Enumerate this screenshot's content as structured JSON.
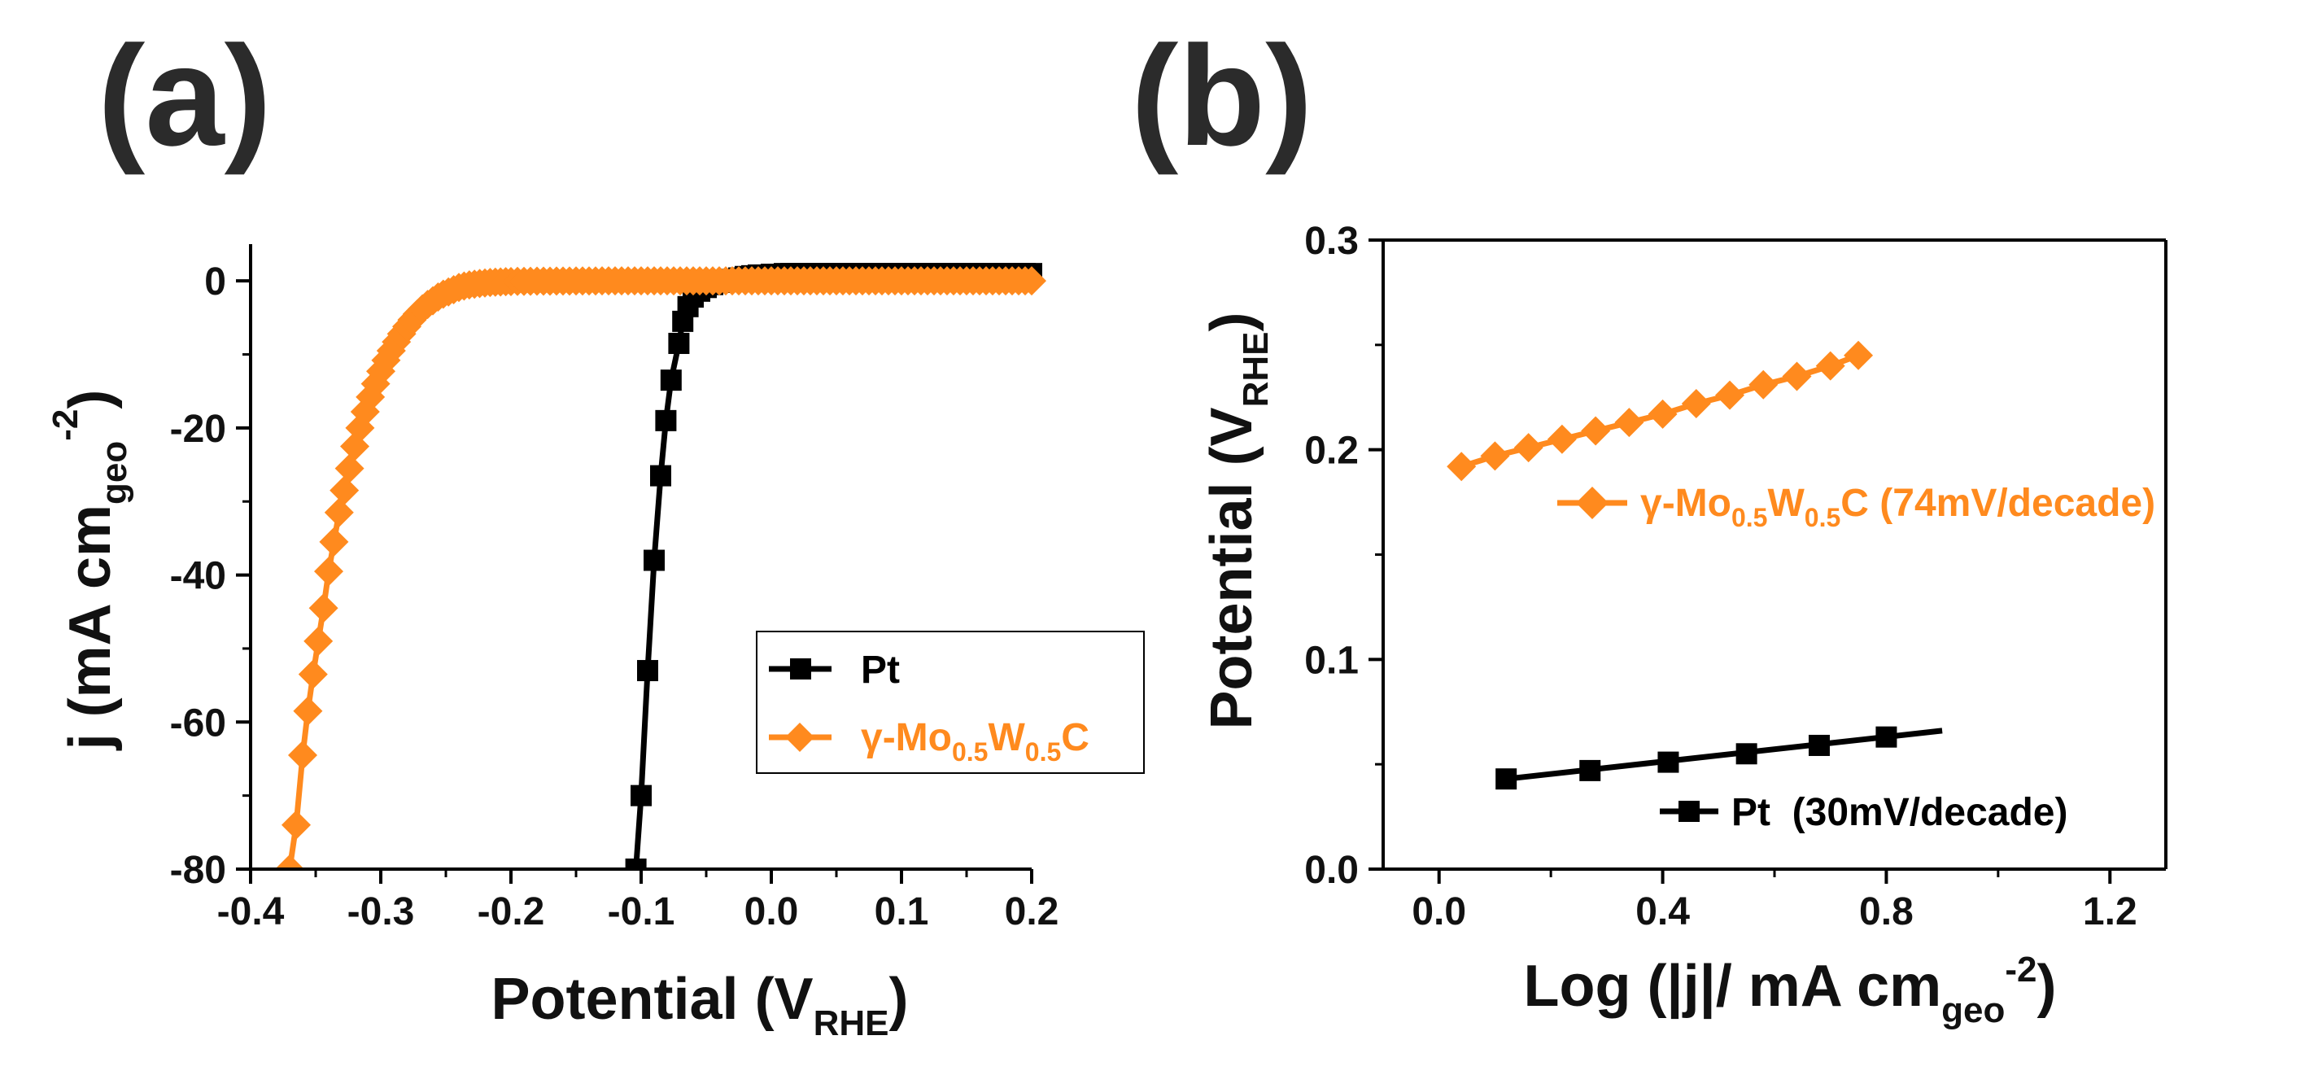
{
  "colors": {
    "pt": "#000000",
    "mowc": "#ff8a1e"
  },
  "chart_data": [
    {
      "type": "line",
      "panel_label": "(a)",
      "xlabel": "Potential (VRHE)",
      "xlabel_parts": {
        "main": "Potential (V",
        "sub": "RHE",
        "end": ")"
      },
      "ylabel": "j (mA cmgeo-2)",
      "ylabel_parts": {
        "main": "j (mA cm",
        "sub": "geo",
        "sup": "-2",
        "end": ")"
      },
      "xlim": [
        -0.4,
        0.2
      ],
      "ylim": [
        -80,
        5
      ],
      "xticks": [
        -0.4,
        -0.3,
        -0.2,
        -0.1,
        0.0,
        0.1,
        0.2
      ],
      "xtick_labels": [
        "-0.4",
        "-0.3",
        "-0.2",
        "-0.1",
        "0.0",
        "0.1",
        "0.2"
      ],
      "yticks": [
        0,
        -20,
        -40,
        -60,
        -80
      ],
      "ytick_labels": [
        "0",
        "-20",
        "-40",
        "-60",
        "-80"
      ],
      "legend_location": "lower-right",
      "series": [
        {
          "name": "Pt",
          "color_key": "pt",
          "marker": "square",
          "legend_parts": {
            "text": "Pt"
          },
          "x": [
            -0.104,
            -0.1,
            -0.095,
            -0.09,
            -0.085,
            -0.081,
            -0.077,
            -0.071,
            -0.068,
            -0.064,
            -0.06,
            -0.055,
            -0.05,
            -0.045,
            -0.04,
            -0.035,
            -0.03,
            -0.025,
            -0.02,
            -0.015,
            -0.01,
            -0.005,
            0.0,
            0.005,
            0.01,
            0.015,
            0.02,
            0.025,
            0.03,
            0.035,
            0.04,
            0.045,
            0.05,
            0.055,
            0.06,
            0.065,
            0.07,
            0.075,
            0.08,
            0.085,
            0.09,
            0.095,
            0.1,
            0.105,
            0.11,
            0.115,
            0.12,
            0.125,
            0.13,
            0.135,
            0.14,
            0.145,
            0.15,
            0.155,
            0.16,
            0.165,
            0.17,
            0.175,
            0.18,
            0.185,
            0.19,
            0.195,
            0.2
          ],
          "y": [
            -80,
            -70,
            -53,
            -38,
            -26.5,
            -19,
            -13.5,
            -8.5,
            -5.5,
            -3.5,
            -2.2,
            -1.4,
            -0.9,
            -0.5,
            -0.2,
            0,
            0.2,
            0.4,
            0.6,
            0.7,
            0.8,
            0.8,
            0.9,
            0.9,
            1.0,
            1.0,
            1.0,
            1.0,
            1.0,
            1.0,
            1.0,
            1.0,
            1.0,
            1.0,
            1.0,
            1.0,
            1.0,
            1.0,
            1.0,
            1.0,
            1.0,
            1.0,
            1.0,
            1.0,
            1.0,
            1.0,
            1.0,
            1.0,
            1.0,
            1.0,
            1.0,
            1.0,
            1.0,
            1.0,
            1.0,
            1.0,
            1.0,
            1.0,
            1.0,
            1.0,
            1.0,
            1.0,
            1.0
          ]
        },
        {
          "name": "γ-Mo0.5W0.5C",
          "color_key": "mowc",
          "marker": "diamond",
          "legend_parts": {
            "pre": "γ-Mo",
            "sub1": "0.5",
            "mid": "W",
            "sub2": "0.5",
            "post": "C"
          },
          "x": [
            -0.37,
            -0.365,
            -0.36,
            -0.356,
            -0.352,
            -0.348,
            -0.344,
            -0.34,
            -0.336,
            -0.332,
            -0.328,
            -0.324,
            -0.32,
            -0.316,
            -0.312,
            -0.308,
            -0.304,
            -0.3,
            -0.296,
            -0.292,
            -0.288,
            -0.284,
            -0.28,
            -0.276,
            -0.272,
            -0.268,
            -0.264,
            -0.26,
            -0.256,
            -0.252,
            -0.248,
            -0.244,
            -0.24,
            -0.236,
            -0.232,
            -0.228,
            -0.224,
            -0.22,
            -0.216,
            -0.212,
            -0.208,
            -0.204,
            -0.2,
            -0.195,
            -0.19,
            -0.185,
            -0.18,
            -0.175,
            -0.17,
            -0.165,
            -0.16,
            -0.155,
            -0.15,
            -0.145,
            -0.14,
            -0.135,
            -0.13,
            -0.125,
            -0.12,
            -0.115,
            -0.11,
            -0.105,
            -0.1,
            -0.095,
            -0.09,
            -0.085,
            -0.08,
            -0.075,
            -0.07,
            -0.065,
            -0.06,
            -0.055,
            -0.05,
            -0.045,
            -0.04,
            -0.035,
            -0.03,
            -0.025,
            -0.02,
            -0.015,
            -0.01,
            -0.005,
            0.0,
            0.005,
            0.01,
            0.015,
            0.02,
            0.025,
            0.03,
            0.035,
            0.04,
            0.045,
            0.05,
            0.055,
            0.06,
            0.065,
            0.07,
            0.075,
            0.08,
            0.085,
            0.09,
            0.095,
            0.1,
            0.105,
            0.11,
            0.115,
            0.12,
            0.125,
            0.13,
            0.135,
            0.14,
            0.145,
            0.15,
            0.155,
            0.16,
            0.165,
            0.17,
            0.175,
            0.18,
            0.185,
            0.19,
            0.195,
            0.2
          ],
          "y": [
            -80,
            -74,
            -64.5,
            -58.5,
            -53.5,
            -49,
            -44.5,
            -39.5,
            -35.5,
            -31.5,
            -28.5,
            -25.5,
            -22.5,
            -20,
            -17.8,
            -15.8,
            -14,
            -12.3,
            -10.8,
            -9.5,
            -8.3,
            -7.2,
            -6.2,
            -5.3,
            -4.5,
            -3.8,
            -3.2,
            -2.7,
            -2.2,
            -1.8,
            -1.5,
            -1.2,
            -0.9,
            -0.7,
            -0.55,
            -0.45,
            -0.35,
            -0.28,
            -0.22,
            -0.18,
            -0.14,
            -0.11,
            -0.09,
            -0.07,
            -0.06,
            -0.05,
            -0.04,
            -0.03,
            -0.03,
            -0.02,
            -0.02,
            -0.02,
            -0.01,
            -0.01,
            -0.01,
            -0.01,
            0,
            0,
            0,
            0,
            0,
            0,
            0,
            0,
            0,
            0,
            0,
            0,
            0,
            0,
            0,
            0,
            0,
            0,
            0,
            0,
            0,
            0,
            0,
            0,
            0,
            0,
            0,
            0,
            0,
            0,
            0,
            0,
            0,
            0,
            0,
            0,
            0,
            0,
            0,
            0,
            0,
            0,
            0,
            0,
            0,
            0,
            0,
            0,
            0,
            0,
            0,
            0,
            0,
            0,
            0,
            0,
            0,
            0,
            0,
            0,
            0,
            0,
            0,
            0,
            0,
            0,
            0
          ]
        }
      ]
    },
    {
      "type": "line",
      "panel_label": "(b)",
      "xlabel": "Log (|j|/ mA cmgeo-2)",
      "xlabel_parts": {
        "main": "Log (|j|/ mA cm",
        "sub": "geo",
        "sup": "-2",
        "end": ")"
      },
      "ylabel": "Potential (VRHE)",
      "ylabel_parts": {
        "main": "Potential (V",
        "sub": "RHE",
        "end": ")"
      },
      "xlim": [
        -0.1,
        1.3
      ],
      "ylim": [
        0.0,
        0.3
      ],
      "xticks": [
        0.0,
        0.4,
        0.8,
        1.2
      ],
      "xtick_labels": [
        "0.0",
        "0.4",
        "0.8",
        "1.2"
      ],
      "yticks": [
        0.0,
        0.1,
        0.2,
        0.3
      ],
      "ytick_labels": [
        "0.0",
        "0.1",
        "0.2",
        "0.3"
      ],
      "series": [
        {
          "name": "γ-Mo0.5W0.5C (74mV/decade)",
          "color_key": "mowc",
          "marker": "diamond",
          "legend_parts": {
            "pre": "γ-Mo",
            "sub1": "0.5",
            "mid": "W",
            "sub2": "0.5",
            "post": "C (74mV/decade)"
          },
          "x": [
            0.04,
            0.1,
            0.16,
            0.22,
            0.28,
            0.34,
            0.4,
            0.46,
            0.52,
            0.58,
            0.64,
            0.7,
            0.75
          ],
          "y": [
            0.192,
            0.197,
            0.201,
            0.205,
            0.209,
            0.213,
            0.217,
            0.222,
            0.226,
            0.231,
            0.235,
            0.24,
            0.245
          ]
        },
        {
          "name": "Pt (30mV/decade)",
          "color_key": "pt",
          "marker": "square",
          "legend_parts": {
            "text": "Pt  (30mV/decade)"
          },
          "x": [
            0.12,
            0.27,
            0.41,
            0.55,
            0.68,
            0.8
          ],
          "y": [
            0.043,
            0.047,
            0.051,
            0.055,
            0.059,
            0.063
          ],
          "fit": {
            "x": [
              0.12,
              0.9
            ],
            "y": [
              0.043,
              0.066
            ]
          }
        }
      ]
    }
  ]
}
